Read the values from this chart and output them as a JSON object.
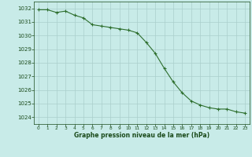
{
  "x": [
    0,
    1,
    2,
    3,
    4,
    5,
    6,
    7,
    8,
    9,
    10,
    11,
    12,
    13,
    14,
    15,
    16,
    17,
    18,
    19,
    20,
    21,
    22,
    23
  ],
  "y": [
    1031.9,
    1031.9,
    1031.7,
    1031.8,
    1031.5,
    1031.3,
    1030.8,
    1030.7,
    1030.6,
    1030.5,
    1030.4,
    1030.2,
    1029.5,
    1028.7,
    1027.6,
    1026.6,
    1025.8,
    1025.2,
    1024.9,
    1024.7,
    1024.6,
    1024.6,
    1024.4,
    1024.3
  ],
  "line_color": "#2d6e2d",
  "marker_color": "#2d6e2d",
  "bg_color": "#c8ebe8",
  "grid_color": "#aacfcc",
  "xlabel": "Graphe pression niveau de la mer (hPa)",
  "xlabel_color": "#1a4a1a",
  "tick_color": "#1a4a1a",
  "ylim_min": 1023.5,
  "ylim_max": 1032.5,
  "yticks": [
    1024,
    1025,
    1026,
    1027,
    1028,
    1029,
    1030,
    1031,
    1032
  ],
  "xticks": [
    0,
    1,
    2,
    3,
    4,
    5,
    6,
    7,
    8,
    9,
    10,
    11,
    12,
    13,
    14,
    15,
    16,
    17,
    18,
    19,
    20,
    21,
    22,
    23
  ],
  "xlim_min": -0.5,
  "xlim_max": 23.5
}
